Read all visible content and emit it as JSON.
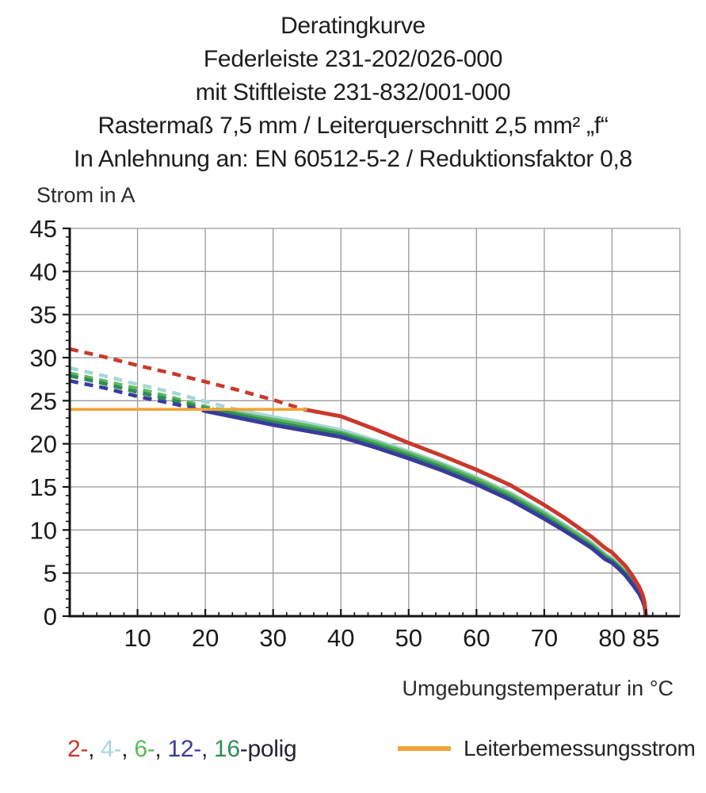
{
  "title_lines": [
    "Deratingkurve",
    "Federleiste 231-202/026-000",
    "mit Stiftleiste 231-832/001-000",
    "Rastermaß 7,5 mm / Leiterquerschnitt 2,5 mm² „f“",
    "In Anlehnung an: EN 60512-5-2 / Reduktionsfaktor 0,8"
  ],
  "y_axis_title": "Strom in A",
  "x_axis_title": "Umgebungstemperatur in °C",
  "legend": {
    "poles": [
      {
        "label": "2-",
        "color": "#c9392c"
      },
      {
        "label": "4-",
        "color": "#a7d6d9"
      },
      {
        "label": "6-",
        "color": "#5fb85c"
      },
      {
        "label": "12-",
        "color": "#3a3a9c"
      },
      {
        "label": "16",
        "color": "#2e8c58"
      }
    ],
    "separator": ", ",
    "suffix": "-polig",
    "text_color": "#232333",
    "reference_label": "Leiterbemessungsstrom",
    "reference_color": "#f0a437"
  },
  "chart_data": {
    "type": "line",
    "title": "Deratingkurve",
    "xlabel": "Umgebungstemperatur in °C",
    "ylabel": "Strom in A",
    "xlim": [
      0,
      90
    ],
    "ylim": [
      0,
      45
    ],
    "grid": true,
    "grid_color": "#9a9a9a",
    "axis_color": "#141414",
    "tick_label_color": "#1a1a1a",
    "x_major_ticks": [
      10,
      20,
      30,
      40,
      50,
      60,
      70,
      80,
      85
    ],
    "x_minor_step": 2,
    "y_major_ticks": [
      0,
      5,
      10,
      15,
      20,
      25,
      30,
      35,
      40,
      45
    ],
    "y_minor_step": 1,
    "grid_x": [
      10,
      20,
      30,
      40,
      50,
      60,
      70,
      80,
      90
    ],
    "grid_y": [
      5,
      10,
      15,
      20,
      25,
      30,
      35,
      40,
      45
    ],
    "series": [
      {
        "name": "4-polig",
        "color": "#a7d6d9",
        "dash_until": 24.5,
        "points": [
          [
            0,
            28.8
          ],
          [
            5,
            27.9
          ],
          [
            10,
            26.9
          ],
          [
            15,
            26.0
          ],
          [
            20,
            24.9
          ],
          [
            24.5,
            24.0
          ],
          [
            30,
            23.1
          ],
          [
            35,
            22.4
          ],
          [
            40,
            21.6
          ],
          [
            45,
            20.4
          ],
          [
            50,
            19.1
          ],
          [
            55,
            17.7
          ],
          [
            60,
            16.1
          ],
          [
            65,
            14.3
          ],
          [
            70,
            12.1
          ],
          [
            73,
            10.6
          ],
          [
            75,
            9.6
          ],
          [
            77,
            8.5
          ],
          [
            79,
            7.2
          ],
          [
            80,
            6.7
          ],
          [
            81,
            6.0
          ],
          [
            82,
            5.2
          ],
          [
            83,
            4.2
          ],
          [
            84,
            3.0
          ],
          [
            84.5,
            2.2
          ],
          [
            84.8,
            1.4
          ],
          [
            85,
            0
          ]
        ]
      },
      {
        "name": "6-polig",
        "color": "#5fb85c",
        "dash_until": 22,
        "points": [
          [
            0,
            28.2
          ],
          [
            5,
            27.3
          ],
          [
            10,
            26.4
          ],
          [
            15,
            25.4
          ],
          [
            20,
            24.3
          ],
          [
            22,
            24.0
          ],
          [
            25,
            23.5
          ],
          [
            30,
            22.8
          ],
          [
            35,
            22.1
          ],
          [
            40,
            21.3
          ],
          [
            45,
            20.2
          ],
          [
            50,
            18.9
          ],
          [
            55,
            17.5
          ],
          [
            60,
            15.9
          ],
          [
            65,
            14.1
          ],
          [
            70,
            11.9
          ],
          [
            73,
            10.4
          ],
          [
            75,
            9.4
          ],
          [
            77,
            8.3
          ],
          [
            79,
            7.0
          ],
          [
            80,
            6.5
          ],
          [
            81,
            5.8
          ],
          [
            82,
            5.0
          ],
          [
            83,
            4.0
          ],
          [
            84,
            2.9
          ],
          [
            84.5,
            2.1
          ],
          [
            84.8,
            1.3
          ],
          [
            85,
            0
          ]
        ]
      },
      {
        "name": "16-polig",
        "color": "#2e8c58",
        "dash_until": 21,
        "points": [
          [
            0,
            27.9
          ],
          [
            5,
            27.0
          ],
          [
            10,
            26.0
          ],
          [
            15,
            25.1
          ],
          [
            20,
            24.1
          ],
          [
            21,
            24.0
          ],
          [
            25,
            23.3
          ],
          [
            30,
            22.5
          ],
          [
            35,
            21.8
          ],
          [
            40,
            21.1
          ],
          [
            45,
            19.9
          ],
          [
            50,
            18.6
          ],
          [
            55,
            17.2
          ],
          [
            60,
            15.6
          ],
          [
            65,
            13.8
          ],
          [
            70,
            11.6
          ],
          [
            73,
            10.1
          ],
          [
            75,
            9.1
          ],
          [
            77,
            8.1
          ],
          [
            79,
            6.8
          ],
          [
            80,
            6.4
          ],
          [
            81,
            5.7
          ],
          [
            82,
            4.9
          ],
          [
            83,
            3.9
          ],
          [
            84,
            2.8
          ],
          [
            84.5,
            2.0
          ],
          [
            84.8,
            1.2
          ],
          [
            85,
            0
          ]
        ]
      },
      {
        "name": "12-polig",
        "color": "#3a3a9c",
        "dash_until": 20,
        "points": [
          [
            0,
            27.3
          ],
          [
            5,
            26.5
          ],
          [
            10,
            25.5
          ],
          [
            15,
            24.7
          ],
          [
            20,
            23.8
          ],
          [
            25,
            23.0
          ],
          [
            30,
            22.2
          ],
          [
            35,
            21.5
          ],
          [
            40,
            20.8
          ],
          [
            45,
            19.6
          ],
          [
            50,
            18.3
          ],
          [
            55,
            16.9
          ],
          [
            60,
            15.3
          ],
          [
            65,
            13.5
          ],
          [
            70,
            11.3
          ],
          [
            73,
            9.9
          ],
          [
            75,
            8.9
          ],
          [
            77,
            7.9
          ],
          [
            79,
            6.6
          ],
          [
            80,
            6.2
          ],
          [
            81,
            5.5
          ],
          [
            82,
            4.7
          ],
          [
            83,
            3.7
          ],
          [
            84,
            2.6
          ],
          [
            84.5,
            1.8
          ],
          [
            84.8,
            1.1
          ],
          [
            85,
            0
          ]
        ]
      },
      {
        "name": "2-polig",
        "color": "#c9392c",
        "dash_until": 34.5,
        "points": [
          [
            0,
            31.0
          ],
          [
            5,
            30.1
          ],
          [
            10,
            29.1
          ],
          [
            15,
            28.2
          ],
          [
            20,
            27.2
          ],
          [
            25,
            26.2
          ],
          [
            30,
            25.1
          ],
          [
            34.5,
            24.0
          ],
          [
            40,
            23.2
          ],
          [
            45,
            21.7
          ],
          [
            50,
            20.1
          ],
          [
            55,
            18.6
          ],
          [
            60,
            17.0
          ],
          [
            65,
            15.2
          ],
          [
            70,
            12.9
          ],
          [
            73,
            11.4
          ],
          [
            75,
            10.3
          ],
          [
            77,
            9.2
          ],
          [
            79,
            7.9
          ],
          [
            80,
            7.4
          ],
          [
            81,
            6.6
          ],
          [
            82,
            5.8
          ],
          [
            83,
            4.7
          ],
          [
            84,
            3.4
          ],
          [
            84.5,
            2.5
          ],
          [
            84.8,
            1.6
          ],
          [
            85,
            0
          ]
        ]
      }
    ],
    "reference_line": {
      "name": "Leiterbemessungsstrom",
      "color": "#f0a437",
      "y": 24,
      "x_start": 0,
      "x_end": 35
    },
    "legend_position": "bottom"
  }
}
